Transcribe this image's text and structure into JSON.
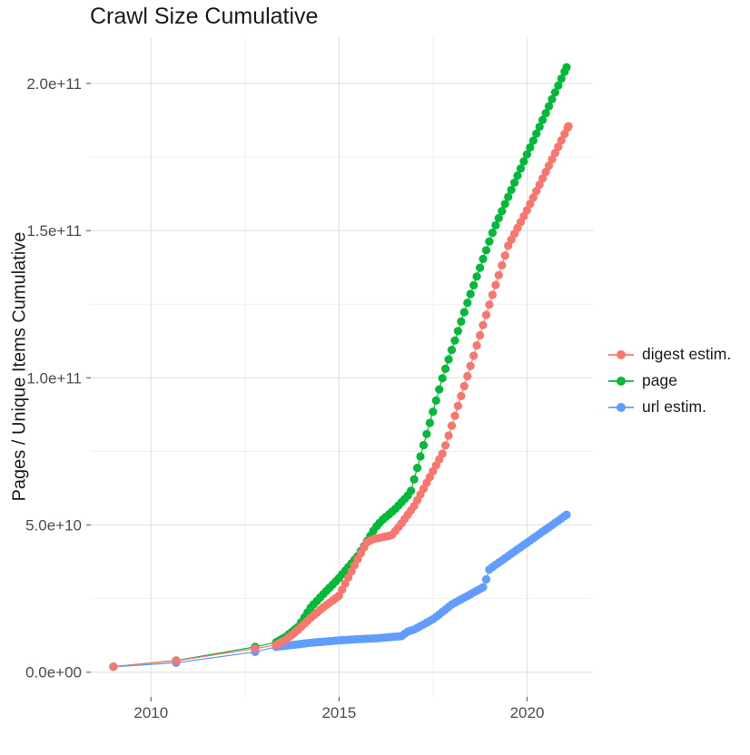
{
  "title": {
    "text": "Crawl Size Cumulative"
  },
  "y_axis": {
    "title": "Pages / Unique Items Cumulative"
  },
  "x_axis": {
    "title": ""
  },
  "legend": {
    "position": "right",
    "items": [
      {
        "label": "digest estim.",
        "color": "#F8766D"
      },
      {
        "label": "page",
        "color": "#00BA38"
      },
      {
        "label": "url estim.",
        "color": "#619CFF"
      }
    ]
  },
  "chart_data": {
    "type": "line",
    "title": "Crawl Size Cumulative",
    "xlabel": "",
    "ylabel": "Pages / Unique Items Cumulative",
    "xlim": [
      2008.4,
      2021.75
    ],
    "ylim": [
      -8400000000.0,
      215700000000.0
    ],
    "x_ticks": [
      2010,
      2015,
      2020
    ],
    "x_tick_labels": [
      "2010",
      "2015",
      "2020"
    ],
    "x_minor_ticks": [
      2012.5,
      2017.5
    ],
    "y_ticks": [
      0,
      50000000000.0,
      100000000000.0,
      150000000000.0,
      200000000000.0
    ],
    "y_tick_labels": [
      "0.0e+00",
      "5.0e+10",
      "1.0e+11",
      "1.5e+11",
      "2.0e+11"
    ],
    "y_minor_ticks": [
      25000000000.0,
      75000000000.0,
      125000000000.0,
      175000000000.0
    ],
    "grid": true,
    "grid_major_color": "#E3E3E3",
    "grid_minor_color": "#F0F0F0",
    "axis_text_color": "#4D4D4D",
    "title_color": "#1A1A1A",
    "legend_position": "right",
    "marker": "filled-circle",
    "dense_from": 2013.33,
    "point_interval_note": "points are individual crawls, roughly monthly from 2013 onward; values between anchors are linear estimates read from the figure",
    "series": [
      {
        "name": "digest estim.",
        "color": "#F8766D",
        "anchors": [
          [
            2009.0,
            1850000000.0
          ],
          [
            2010.67,
            3900000000.0
          ],
          [
            2012.77,
            8000000000.0
          ],
          [
            2013.33,
            9300000000.0
          ],
          [
            2013.58,
            11000000000.0
          ],
          [
            2013.92,
            14500000000.0
          ],
          [
            2014.25,
            18500000000.0
          ],
          [
            2014.58,
            22000000000.0
          ],
          [
            2015.0,
            26000000000.0
          ],
          [
            2015.5,
            38500000000.0
          ],
          [
            2015.73,
            44000000000.0
          ],
          [
            2015.9,
            45200000000.0
          ],
          [
            2016.4,
            46500000000.0
          ],
          [
            2016.63,
            50000000000.0
          ],
          [
            2017.0,
            56500000000.0
          ],
          [
            2017.78,
            75000000000.0
          ],
          [
            2018.4,
            100000000000.0
          ],
          [
            2019.0,
            125000000000.0
          ],
          [
            2019.5,
            145000000000.0
          ],
          [
            2020.0,
            157000000000.0
          ],
          [
            2020.5,
            170000000000.0
          ],
          [
            2021.1,
            185500000000.0
          ]
        ]
      },
      {
        "name": "page",
        "color": "#00BA38",
        "anchors": [
          [
            2009.0,
            1900000000.0
          ],
          [
            2010.67,
            4000000000.0
          ],
          [
            2012.77,
            8600000000.0
          ],
          [
            2013.33,
            10200000000.0
          ],
          [
            2013.58,
            12000000000.0
          ],
          [
            2013.92,
            15500000000.0
          ],
          [
            2014.25,
            22000000000.0
          ],
          [
            2014.58,
            26500000000.0
          ],
          [
            2015.0,
            32000000000.0
          ],
          [
            2015.5,
            39500000000.0
          ],
          [
            2015.96,
            49000000000.0
          ],
          [
            2016.13,
            51500000000.0
          ],
          [
            2016.5,
            55500000000.0
          ],
          [
            2016.9,
            61000000000.0
          ],
          [
            2017.2,
            75000000000.0
          ],
          [
            2017.75,
            100000000000.0
          ],
          [
            2018.4,
            125000000000.0
          ],
          [
            2019.1,
            150000000000.0
          ],
          [
            2020.0,
            176000000000.0
          ],
          [
            2020.5,
            190000000000.0
          ],
          [
            2021.05,
            205500000000.0
          ]
        ]
      },
      {
        "name": "url estim.",
        "color": "#619CFF",
        "anchors": [
          [
            2009.0,
            1800000000.0
          ],
          [
            2010.67,
            3200000000.0
          ],
          [
            2012.77,
            6900000000.0
          ],
          [
            2013.33,
            8600000000.0
          ],
          [
            2013.92,
            9500000000.0
          ],
          [
            2014.25,
            10000000000.0
          ],
          [
            2015.0,
            10800000000.0
          ],
          [
            2015.5,
            11200000000.0
          ],
          [
            2016.0,
            11500000000.0
          ],
          [
            2016.7,
            12300000000.0
          ],
          [
            2016.78,
            13600000000.0
          ],
          [
            2017.0,
            14500000000.0
          ],
          [
            2017.5,
            18000000000.0
          ],
          [
            2018.0,
            23000000000.0
          ],
          [
            2018.5,
            26500000000.0
          ],
          [
            2018.85,
            29000000000.0
          ],
          [
            2019.0,
            35000000000.0
          ],
          [
            2019.5,
            39500000000.0
          ],
          [
            2020.0,
            44000000000.0
          ],
          [
            2020.5,
            48500000000.0
          ],
          [
            2021.05,
            53500000000.0
          ]
        ]
      }
    ]
  }
}
